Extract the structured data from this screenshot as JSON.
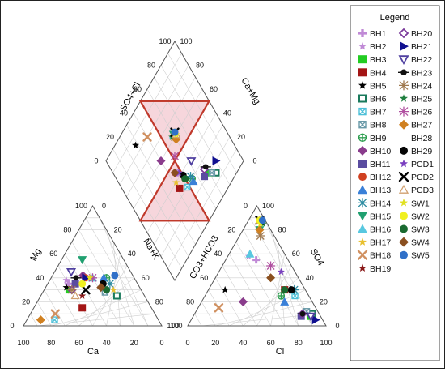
{
  "chart_data": {
    "type": "scatter",
    "subtype": "piper-trilinear-diagram",
    "title": "",
    "axes": {
      "cation": {
        "left_label": "Mg",
        "bottom_label": "Ca",
        "right_label": "Na+K",
        "ticks": [
          "0",
          "20",
          "40",
          "60",
          "80",
          "100"
        ]
      },
      "anion": {
        "left_label": "CO3+HCO3",
        "bottom_label": "Cl",
        "right_label": "SO4",
        "ticks": [
          "0",
          "20",
          "40",
          "60",
          "80",
          "100"
        ]
      },
      "diamond": {
        "upper_left_label": "SO4+Cl",
        "upper_right_label": "Ca+Mg",
        "ticks": [
          "0",
          "20",
          "40",
          "60",
          "80",
          "100"
        ]
      }
    },
    "grid": true,
    "legend_title": "Legend",
    "legend_position": "right",
    "highlight": {
      "shape": "hourglass",
      "color": "#c0392b",
      "fill": "#f6d6dc"
    },
    "series": [
      {
        "name": "BH1",
        "marker": "plus",
        "color": "#c08ad6",
        "cation": [
          15,
          35
        ],
        "anion": [
          22,
          55
        ],
        "diamond": [
          47,
          43
        ]
      },
      {
        "name": "BH2",
        "marker": "star",
        "color": "#c08ad6",
        "cation": [
          12,
          38
        ],
        "anion": [
          15,
          58
        ],
        "diamond": [
          45,
          45
        ]
      },
      {
        "name": "BH3",
        "marker": "square",
        "color": "#22cc22",
        "cation": [
          18,
          30
        ],
        "anion": [
          85,
          8
        ],
        "diamond": [
          70,
          20
        ]
      },
      {
        "name": "BH4",
        "marker": "square",
        "color": "#a31515",
        "cation": [
          35,
          15
        ],
        "anion": [
          55,
          30
        ],
        "diamond": [
          42,
          35
        ]
      },
      {
        "name": "BH5",
        "marker": "star",
        "color": "#000000",
        "cation": [
          15,
          32
        ],
        "anion": [
          12,
          30
        ],
        "diamond": [
          28,
          85
        ]
      },
      {
        "name": "BH6",
        "marker": "square-open",
        "color": "#1a7a5c",
        "cation": [
          55,
          25
        ],
        "anion": [
          85,
          10
        ],
        "diamond": [
          75,
          15
        ]
      },
      {
        "name": "BH7",
        "marker": "square-x",
        "color": "#4ec0d8",
        "cation": [
          20,
          5
        ],
        "anion": [
          65,
          25
        ],
        "diamond": [
          48,
          30
        ]
      },
      {
        "name": "BH8",
        "marker": "square-x",
        "color": "#6a9aa8",
        "cation": [
          45,
          28
        ],
        "anion": [
          80,
          12
        ],
        "diamond": [
          72,
          18
        ]
      },
      {
        "name": "BH9",
        "marker": "circle-plus",
        "color": "#2e9e50",
        "cation": [
          40,
          40
        ],
        "anion": [
          55,
          25
        ],
        "diamond": [
          55,
          30
        ]
      },
      {
        "name": "BH10",
        "marker": "diamond",
        "color": "#8a3c8c",
        "cation": [
          22,
          42
        ],
        "anion": [
          30,
          20
        ],
        "diamond": [
          40,
          60
        ]
      },
      {
        "name": "BH11",
        "marker": "square",
        "color": "#5a4ca0",
        "cation": [
          20,
          35
        ],
        "anion": [
          78,
          8
        ],
        "diamond": [
          65,
          22
        ]
      },
      {
        "name": "BH12",
        "marker": "circle",
        "color": "#d04020",
        "cation": [
          25,
          40
        ],
        "anion": [
          55,
          30
        ],
        "diamond": [
          50,
          35
        ]
      },
      {
        "name": "BH13",
        "marker": "triangle",
        "color": "#3a80d8",
        "cation": [
          38,
          40
        ],
        "anion": [
          60,
          20
        ],
        "diamond": [
          55,
          28
        ]
      },
      {
        "name": "BH14",
        "marker": "star-x",
        "color": "#2a8aa0",
        "cation": [
          45,
          35
        ],
        "anion": [
          62,
          30
        ],
        "diamond": [
          55,
          32
        ]
      },
      {
        "name": "BH15",
        "marker": "triangle-down",
        "color": "#20a070",
        "cation": [
          15,
          55
        ],
        "anion": [
          12,
          80
        ],
        "diamond": [
          60,
          62
        ]
      },
      {
        "name": "BH16",
        "marker": "triangle",
        "color": "#58c8e0",
        "cation": [
          30,
          40
        ],
        "anion": [
          15,
          60
        ],
        "diamond": [
          60,
          62
        ]
      },
      {
        "name": "BH17",
        "marker": "star",
        "color": "#e8c030",
        "cation": [
          50,
          30
        ],
        "anion": [
          40,
          40
        ],
        "diamond": [
          42,
          40
        ]
      },
      {
        "name": "BH18",
        "marker": "x",
        "color": "#d09060",
        "cation": [
          18,
          10
        ],
        "anion": [
          15,
          15
        ],
        "diamond": [
          40,
          80
        ]
      },
      {
        "name": "BH19",
        "marker": "star",
        "color": "#8a1a1a",
        "cation": [
          30,
          25
        ],
        "anion": [
          55,
          30
        ],
        "diamond": [
          45,
          45
        ]
      },
      {
        "name": "BH20",
        "marker": "diamond-open",
        "color": "#7a3a9a",
        "cation": [
          20,
          30
        ],
        "anion": [
          78,
          10
        ],
        "diamond": [
          68,
          25
        ]
      },
      {
        "name": "BH21",
        "marker": "triangle-right",
        "color": "#101090",
        "cation": [
          25,
          40
        ],
        "anion": [
          90,
          5
        ],
        "diamond": [
          80,
          20
        ]
      },
      {
        "name": "BH22",
        "marker": "triangle-down-open",
        "color": "#5040a0",
        "cation": [
          12,
          45
        ],
        "anion": [
          85,
          8
        ],
        "diamond": [
          62,
          38
        ]
      },
      {
        "name": "BH23",
        "marker": "circle-dash",
        "color": "#101010",
        "cation": [
          18,
          40
        ],
        "anion": [
          78,
          10
        ],
        "diamond": [
          70,
          25
        ]
      },
      {
        "name": "BH24",
        "marker": "star-x",
        "color": "#a07a50",
        "cation": [
          20,
          30
        ],
        "anion": [
          15,
          75
        ],
        "diamond": [
          60,
          60
        ]
      },
      {
        "name": "BH25",
        "marker": "star",
        "color": "#208040",
        "cation": [
          25,
          35
        ],
        "anion": [
          12,
          85
        ],
        "diamond": [
          58,
          62
        ]
      },
      {
        "name": "BH26",
        "marker": "star-x",
        "color": "#b050a0",
        "cation": [
          30,
          40
        ],
        "anion": [
          35,
          50
        ],
        "diamond": [
          52,
          52
        ]
      },
      {
        "name": "BH27",
        "marker": "diamond",
        "color": "#d08020",
        "cation": [
          10,
          5
        ],
        "anion": [
          12,
          80
        ],
        "diamond": [
          60,
          58
        ]
      },
      {
        "name": "BH28",
        "marker": "crescent",
        "color": "#3020a0",
        "cation": [
          28,
          32
        ],
        "anion": [
          55,
          25
        ],
        "diamond": [
          50,
          40
        ]
      },
      {
        "name": "BH29",
        "marker": "circle",
        "color": "#050505",
        "cation": [
          40,
          35
        ],
        "anion": [
          60,
          30
        ],
        "diamond": [
          50,
          38
        ]
      },
      {
        "name": "PCD1",
        "marker": "star",
        "color": "#7a40c0",
        "cation": [
          25,
          35
        ],
        "anion": [
          45,
          45
        ],
        "diamond": [
          48,
          42
        ]
      },
      {
        "name": "PCD2",
        "marker": "x",
        "color": "#000000",
        "cation": [
          30,
          30
        ],
        "anion": [
          8,
          88
        ],
        "diamond": [
          62,
          62
        ]
      },
      {
        "name": "PCD3",
        "marker": "triangle-open",
        "color": "#d0a070",
        "cation": [
          25,
          25
        ],
        "anion": [
          8,
          88
        ],
        "diamond": [
          62,
          60
        ]
      },
      {
        "name": "SW1",
        "marker": "star",
        "color": "#e0e020",
        "cation": [
          28,
          40
        ],
        "anion": [
          10,
          85
        ],
        "diamond": [
          62,
          60
        ]
      },
      {
        "name": "SW2",
        "marker": "circle",
        "color": "#f0f020",
        "cation": [
          25,
          35
        ],
        "anion": [
          8,
          88
        ],
        "diamond": [
          62,
          62
        ]
      },
      {
        "name": "SW3",
        "marker": "circle",
        "color": "#1a6a30",
        "cation": [
          45,
          30
        ],
        "anion": [
          55,
          30
        ],
        "diamond": [
          50,
          35
        ]
      },
      {
        "name": "SW4",
        "marker": "diamond",
        "color": "#8a5020",
        "cation": [
          40,
          32
        ],
        "anion": [
          40,
          40
        ],
        "diamond": [
          45,
          45
        ]
      },
      {
        "name": "SW5",
        "marker": "circle",
        "color": "#3070c8",
        "cation": [
          45,
          42
        ],
        "anion": [
          10,
          88
        ],
        "diamond": [
          62,
          62
        ]
      }
    ]
  }
}
